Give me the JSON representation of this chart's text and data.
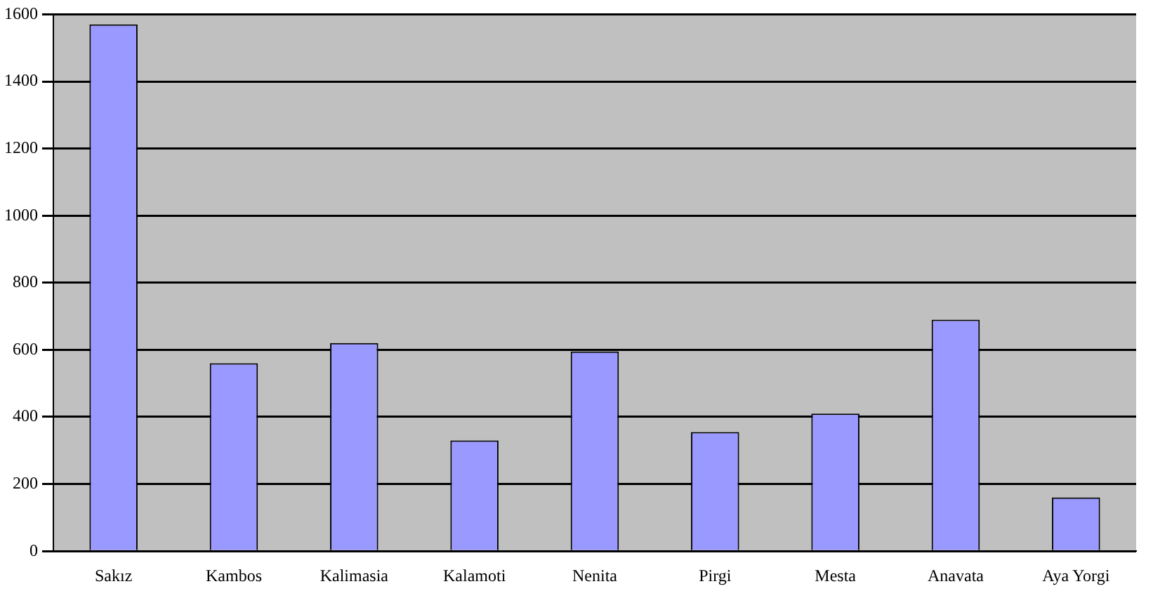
{
  "chart_data": {
    "type": "bar",
    "categories": [
      "Sakız",
      "Kambos",
      "Kalimasia",
      "Kalamoti",
      "Nenita",
      "Pirgi",
      "Mesta",
      "Anavata",
      "Aya Yorgi"
    ],
    "values": [
      1570,
      560,
      620,
      330,
      595,
      355,
      410,
      690,
      160
    ],
    "color": "#9999ff",
    "ylim": [
      0,
      1600
    ],
    "yticks": [
      0,
      200,
      400,
      600,
      800,
      1000,
      1200,
      1400,
      1600
    ],
    "grid": "y",
    "legend": false
  }
}
